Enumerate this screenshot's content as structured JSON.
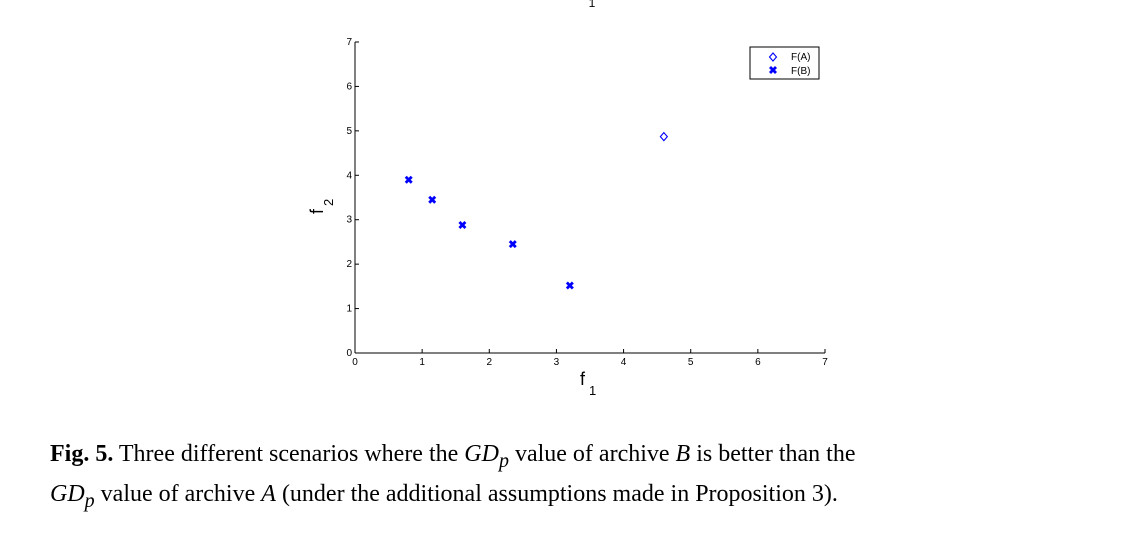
{
  "top_fragment": "1",
  "chart_data": {
    "type": "scatter",
    "xlabel": "f",
    "xlabel_sub": "1",
    "ylabel": "f",
    "ylabel_sub": "2",
    "xlim": [
      0,
      7
    ],
    "ylim": [
      0,
      7
    ],
    "xticks": [
      0,
      1,
      2,
      3,
      4,
      5,
      6,
      7
    ],
    "yticks": [
      0,
      1,
      2,
      3,
      4,
      5,
      6,
      7
    ],
    "grid": false,
    "legend_position": "top-right",
    "series": [
      {
        "name": "F(A)",
        "marker": "diamond-open",
        "color": "#0000ff",
        "points": [
          {
            "x": 4.6,
            "y": 4.87
          }
        ]
      },
      {
        "name": "F(B)",
        "marker": "x-filled",
        "color": "#0000ff",
        "points": [
          {
            "x": 0.8,
            "y": 3.9
          },
          {
            "x": 1.15,
            "y": 3.45
          },
          {
            "x": 1.6,
            "y": 2.88
          },
          {
            "x": 2.35,
            "y": 2.45
          },
          {
            "x": 3.2,
            "y": 1.52
          }
        ]
      }
    ]
  },
  "caption": {
    "label": "Fig. 5.",
    "part1": " Three different scenarios where the ",
    "gd": "GD",
    "sub": "p",
    "part2": " value of archive ",
    "b": "B",
    "part3": " is better than the ",
    "part4": " value of archive ",
    "a": "A",
    "part5": " (under the additional assumptions made in Proposition 3)."
  }
}
